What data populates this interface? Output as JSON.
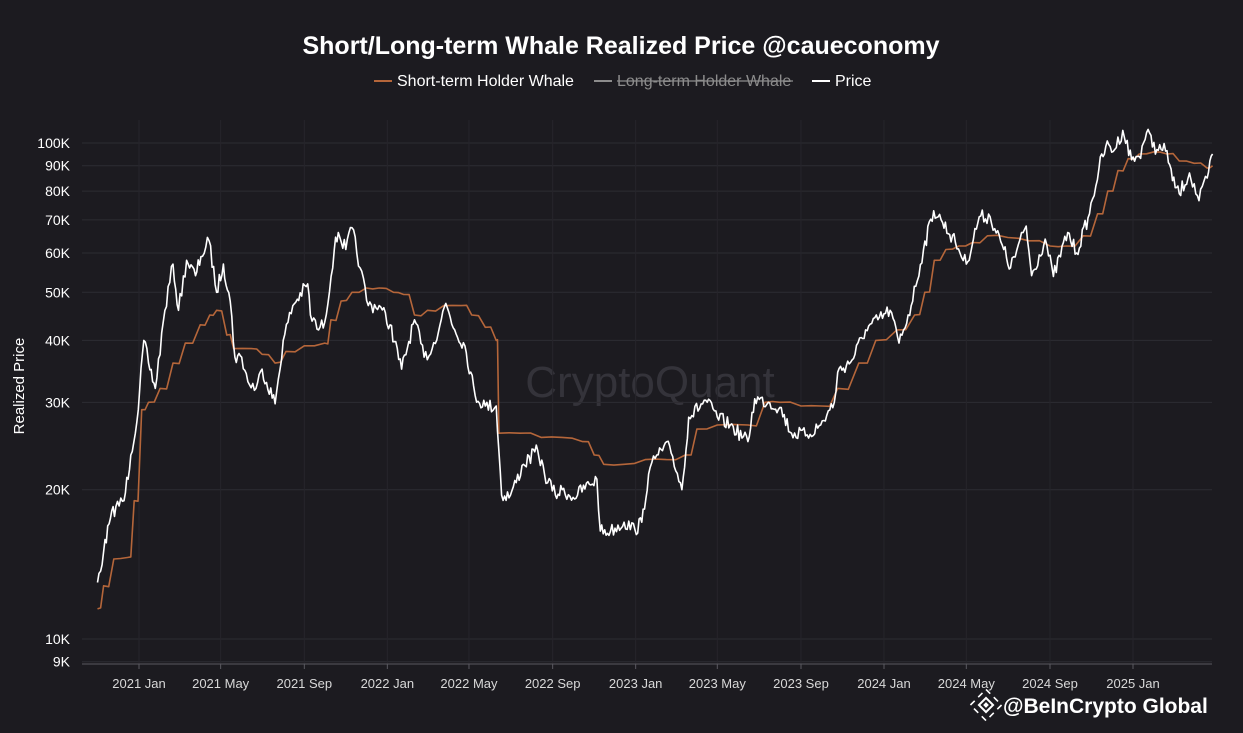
{
  "chart_data": {
    "type": "line",
    "title": "Short/Long-term Whale Realized Price @caueconomy",
    "ylabel": "Realized Price",
    "xlabel": "",
    "y_scale": "log",
    "ylim": [
      9000,
      120000
    ],
    "xlim": [
      "2020-11-01",
      "2025-05-01"
    ],
    "y_ticks": [
      {
        "value": 9000,
        "label": "9K"
      },
      {
        "value": 10000,
        "label": "10K"
      },
      {
        "value": 20000,
        "label": "20K"
      },
      {
        "value": 30000,
        "label": "30K"
      },
      {
        "value": 40000,
        "label": "40K"
      },
      {
        "value": 50000,
        "label": "50K"
      },
      {
        "value": 60000,
        "label": "60K"
      },
      {
        "value": 70000,
        "label": "70K"
      },
      {
        "value": 80000,
        "label": "80K"
      },
      {
        "value": 90000,
        "label": "90K"
      },
      {
        "value": 100000,
        "label": "100K"
      }
    ],
    "x_ticks": [
      {
        "date": "2021-01-01",
        "label": "2021 Jan"
      },
      {
        "date": "2021-05-01",
        "label": "2021 May"
      },
      {
        "date": "2021-09-01",
        "label": "2021 Sep"
      },
      {
        "date": "2022-01-01",
        "label": "2022 Jan"
      },
      {
        "date": "2022-05-01",
        "label": "2022 May"
      },
      {
        "date": "2022-09-01",
        "label": "2022 Sep"
      },
      {
        "date": "2023-01-01",
        "label": "2023 Jan"
      },
      {
        "date": "2023-05-01",
        "label": "2023 May"
      },
      {
        "date": "2023-09-01",
        "label": "2023 Sep"
      },
      {
        "date": "2024-01-01",
        "label": "2024 Jan"
      },
      {
        "date": "2024-05-01",
        "label": "2024 May"
      },
      {
        "date": "2024-09-01",
        "label": "2024 Sep"
      },
      {
        "date": "2025-01-01",
        "label": "2025 Jan"
      }
    ],
    "legend_position": "top-center",
    "grid": true,
    "series": [
      {
        "name": "Short-term Holder Whale",
        "color": "#b5663a",
        "hidden": false,
        "points": [
          [
            "2020-11-01",
            11500
          ],
          [
            "2020-11-10",
            12800
          ],
          [
            "2020-11-25",
            14500
          ],
          [
            "2020-12-15",
            14600
          ],
          [
            "2020-12-25",
            19000
          ],
          [
            "2021-01-05",
            29000
          ],
          [
            "2021-01-15",
            30000
          ],
          [
            "2021-02-01",
            32000
          ],
          [
            "2021-02-20",
            36000
          ],
          [
            "2021-03-10",
            39500
          ],
          [
            "2021-04-01",
            43000
          ],
          [
            "2021-04-15",
            45000
          ],
          [
            "2021-04-25",
            46000
          ],
          [
            "2021-05-10",
            41000
          ],
          [
            "2021-05-20",
            38500
          ],
          [
            "2021-06-15",
            38500
          ],
          [
            "2021-07-01",
            37500
          ],
          [
            "2021-07-20",
            36000
          ],
          [
            "2021-08-05",
            38000
          ],
          [
            "2021-09-01",
            39000
          ],
          [
            "2021-10-01",
            39500
          ],
          [
            "2021-10-10",
            44000
          ],
          [
            "2021-10-25",
            48000
          ],
          [
            "2021-11-10",
            50000
          ],
          [
            "2021-12-01",
            51000
          ],
          [
            "2021-12-20",
            51000
          ],
          [
            "2022-01-10",
            50000
          ],
          [
            "2022-01-25",
            49500
          ],
          [
            "2022-02-10",
            45000
          ],
          [
            "2022-03-01",
            46000
          ],
          [
            "2022-03-25",
            47000
          ],
          [
            "2022-04-20",
            47000
          ],
          [
            "2022-05-05",
            45000
          ],
          [
            "2022-05-25",
            42500
          ],
          [
            "2022-06-10",
            40000
          ],
          [
            "2022-06-14",
            26000
          ],
          [
            "2022-07-15",
            26000
          ],
          [
            "2022-08-15",
            25500
          ],
          [
            "2022-09-15",
            25500
          ],
          [
            "2022-10-15",
            25000
          ],
          [
            "2022-11-01",
            23500
          ],
          [
            "2022-11-15",
            22500
          ],
          [
            "2022-12-15",
            22500
          ],
          [
            "2023-01-15",
            23000
          ],
          [
            "2023-02-15",
            23000
          ],
          [
            "2023-03-15",
            23500
          ],
          [
            "2023-04-01",
            26500
          ],
          [
            "2023-05-01",
            27000
          ],
          [
            "2023-06-15",
            27000
          ],
          [
            "2023-07-10",
            30000
          ],
          [
            "2023-08-01",
            30000
          ],
          [
            "2023-09-01",
            29500
          ],
          [
            "2023-10-01",
            29500
          ],
          [
            "2023-10-25",
            32000
          ],
          [
            "2023-11-25",
            36000
          ],
          [
            "2023-12-20",
            40000
          ],
          [
            "2024-01-20",
            42000
          ],
          [
            "2024-02-15",
            45000
          ],
          [
            "2024-03-01",
            50000
          ],
          [
            "2024-03-15",
            58000
          ],
          [
            "2024-04-01",
            61000
          ],
          [
            "2024-04-20",
            62000
          ],
          [
            "2024-05-10",
            63000
          ],
          [
            "2024-06-01",
            65000
          ],
          [
            "2024-07-01",
            64500
          ],
          [
            "2024-08-01",
            63500
          ],
          [
            "2024-09-01",
            62000
          ],
          [
            "2024-09-25",
            62000
          ],
          [
            "2024-10-20",
            65000
          ],
          [
            "2024-11-10",
            72000
          ],
          [
            "2024-11-25",
            80000
          ],
          [
            "2024-12-10",
            88000
          ],
          [
            "2024-12-25",
            93000
          ],
          [
            "2025-01-10",
            95000
          ],
          [
            "2025-02-01",
            96000
          ],
          [
            "2025-02-20",
            95000
          ],
          [
            "2025-03-10",
            92000
          ],
          [
            "2025-04-01",
            91000
          ],
          [
            "2025-04-20",
            89000
          ],
          [
            "2025-04-28",
            90000
          ]
        ]
      },
      {
        "name": "Long-term Holder Whale",
        "color": "#8c8c8c",
        "hidden": true,
        "points": []
      },
      {
        "name": "Price",
        "color": "#ffffff",
        "hidden": false,
        "points": [
          [
            "2020-11-01",
            13000
          ],
          [
            "2020-11-10",
            15000
          ],
          [
            "2020-11-20",
            17500
          ],
          [
            "2020-11-28",
            18500
          ],
          [
            "2020-12-10",
            19000
          ],
          [
            "2020-12-20",
            23500
          ],
          [
            "2020-12-31",
            29000
          ],
          [
            "2021-01-08",
            40000
          ],
          [
            "2021-01-15",
            36000
          ],
          [
            "2021-01-25",
            32000
          ],
          [
            "2021-02-08",
            46000
          ],
          [
            "2021-02-20",
            57000
          ],
          [
            "2021-02-28",
            46000
          ],
          [
            "2021-03-12",
            58000
          ],
          [
            "2021-03-25",
            54000
          ],
          [
            "2021-04-02",
            59000
          ],
          [
            "2021-04-14",
            63500
          ],
          [
            "2021-04-25",
            50000
          ],
          [
            "2021-05-05",
            57000
          ],
          [
            "2021-05-15",
            48000
          ],
          [
            "2021-05-22",
            37000
          ],
          [
            "2021-06-01",
            37000
          ],
          [
            "2021-06-10",
            33000
          ],
          [
            "2021-06-22",
            32000
          ],
          [
            "2021-07-01",
            35000
          ],
          [
            "2021-07-20",
            29800
          ],
          [
            "2021-08-01",
            40000
          ],
          [
            "2021-08-15",
            47000
          ],
          [
            "2021-09-06",
            52000
          ],
          [
            "2021-09-10",
            45000
          ],
          [
            "2021-09-22",
            42000
          ],
          [
            "2021-10-01",
            43500
          ],
          [
            "2021-10-15",
            61000
          ],
          [
            "2021-10-21",
            66000
          ],
          [
            "2021-11-01",
            61000
          ],
          [
            "2021-11-10",
            67500
          ],
          [
            "2021-11-22",
            56000
          ],
          [
            "2021-12-04",
            47000
          ],
          [
            "2021-12-20",
            47000
          ],
          [
            "2022-01-05",
            43000
          ],
          [
            "2022-01-22",
            35000
          ],
          [
            "2022-02-10",
            44000
          ],
          [
            "2022-02-24",
            37000
          ],
          [
            "2022-03-08",
            38500
          ],
          [
            "2022-03-28",
            47500
          ],
          [
            "2022-04-10",
            42000
          ],
          [
            "2022-04-25",
            39000
          ],
          [
            "2022-05-10",
            31000
          ],
          [
            "2022-05-25",
            29500
          ],
          [
            "2022-06-10",
            29500
          ],
          [
            "2022-06-18",
            19500
          ],
          [
            "2022-07-01",
            19500
          ],
          [
            "2022-07-20",
            22500
          ],
          [
            "2022-08-10",
            24000
          ],
          [
            "2022-08-20",
            21500
          ],
          [
            "2022-09-05",
            19500
          ],
          [
            "2022-09-15",
            20000
          ],
          [
            "2022-10-01",
            19300
          ],
          [
            "2022-10-25",
            20500
          ],
          [
            "2022-11-05",
            21000
          ],
          [
            "2022-11-10",
            16500
          ],
          [
            "2022-11-25",
            16500
          ],
          [
            "2022-12-15",
            17200
          ],
          [
            "2022-12-31",
            16600
          ],
          [
            "2023-01-10",
            17200
          ],
          [
            "2023-01-20",
            21500
          ],
          [
            "2023-02-01",
            23500
          ],
          [
            "2023-02-20",
            24500
          ],
          [
            "2023-03-10",
            20000
          ],
          [
            "2023-03-20",
            28000
          ],
          [
            "2023-04-14",
            30300
          ],
          [
            "2023-05-01",
            28000
          ],
          [
            "2023-05-20",
            27000
          ],
          [
            "2023-06-15",
            25000
          ],
          [
            "2023-06-25",
            30500
          ],
          [
            "2023-07-15",
            30000
          ],
          [
            "2023-08-01",
            29300
          ],
          [
            "2023-08-18",
            26000
          ],
          [
            "2023-09-10",
            25800
          ],
          [
            "2023-09-30",
            27000
          ],
          [
            "2023-10-20",
            30000
          ],
          [
            "2023-10-25",
            34500
          ],
          [
            "2023-11-15",
            36500
          ],
          [
            "2023-12-05",
            42000
          ],
          [
            "2024-01-10",
            46000
          ],
          [
            "2024-01-23",
            39500
          ],
          [
            "2024-02-10",
            47000
          ],
          [
            "2024-02-28",
            61000
          ],
          [
            "2024-03-14",
            73000
          ],
          [
            "2024-03-25",
            70000
          ],
          [
            "2024-04-15",
            63000
          ],
          [
            "2024-05-01",
            57000
          ],
          [
            "2024-05-20",
            71000
          ],
          [
            "2024-06-05",
            71000
          ],
          [
            "2024-06-25",
            61000
          ],
          [
            "2024-07-05",
            56000
          ],
          [
            "2024-07-28",
            68000
          ],
          [
            "2024-08-05",
            54000
          ],
          [
            "2024-08-25",
            64000
          ],
          [
            "2024-09-06",
            53800
          ],
          [
            "2024-09-27",
            66000
          ],
          [
            "2024-10-10",
            60000
          ],
          [
            "2024-10-29",
            72000
          ],
          [
            "2024-11-12",
            89000
          ],
          [
            "2024-11-22",
            98500
          ],
          [
            "2024-12-05",
            97000
          ],
          [
            "2024-12-17",
            106000
          ],
          [
            "2024-12-30",
            92500
          ],
          [
            "2025-01-10",
            94000
          ],
          [
            "2025-01-21",
            105000
          ],
          [
            "2025-02-05",
            97000
          ],
          [
            "2025-02-20",
            96500
          ],
          [
            "2025-02-28",
            84000
          ],
          [
            "2025-03-10",
            79000
          ],
          [
            "2025-03-25",
            87000
          ],
          [
            "2025-04-08",
            76500
          ],
          [
            "2025-04-20",
            85000
          ],
          [
            "2025-04-28",
            95000
          ]
        ]
      }
    ]
  },
  "legend": {
    "stb_label": "Short-term Holder Whale",
    "ltb_label": "Long-term Holder Whale",
    "price_label": "Price"
  },
  "watermark": {
    "text": "CryptoQuant"
  },
  "attribution": {
    "text": "@BeInCrypto Global"
  }
}
